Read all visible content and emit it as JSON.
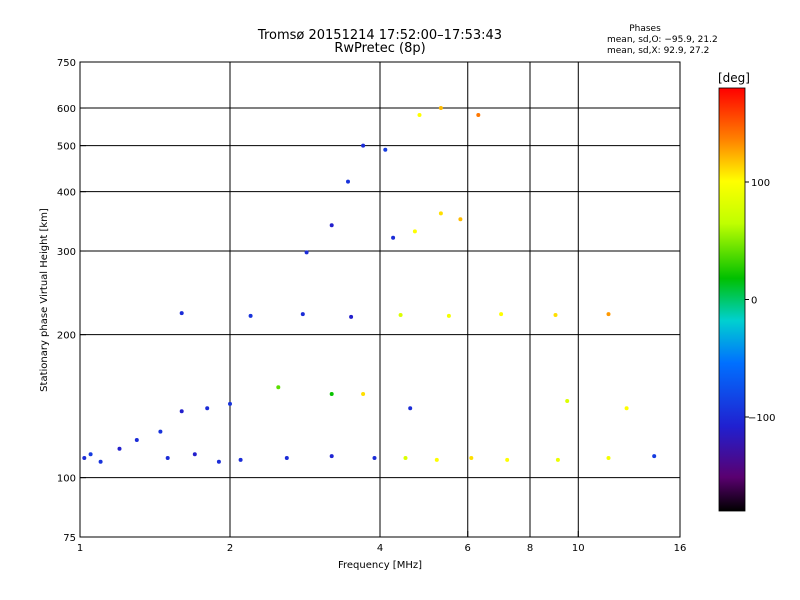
{
  "chart_data": {
    "type": "scatter",
    "title": "Tromsø 20151214 17:52:00–17:53:43",
    "subtitle": "RwPretec (8p)",
    "xlabel": "Frequency [MHz]",
    "ylabel": "Stationary phase Virtual Height [km]",
    "x_scale": "log",
    "y_scale": "log",
    "xlim": [
      1,
      16
    ],
    "ylim": [
      75,
      750
    ],
    "x_ticks": [
      1,
      2,
      4,
      6,
      8,
      10,
      16
    ],
    "y_ticks": [
      75,
      100,
      200,
      300,
      400,
      500,
      600,
      750
    ],
    "grid": true,
    "stats": {
      "heading": "Phases",
      "line_o": "mean, sd,O: −95.9, 21.2",
      "line_x": "mean, sd,X:  92.9, 27.2"
    },
    "colorbar": {
      "label": "[deg]",
      "ticks": [
        100,
        0,
        -100
      ],
      "range": [
        -180,
        180
      ],
      "colormap": "rainbow"
    },
    "series": [
      {
        "values": [
          [
            1.02,
            110,
            -100
          ],
          [
            1.05,
            112,
            -90
          ],
          [
            1.1,
            108,
            -95
          ],
          [
            1.2,
            115,
            -110
          ],
          [
            1.3,
            120,
            -100
          ],
          [
            1.45,
            125,
            -95
          ],
          [
            1.5,
            110,
            -100
          ],
          [
            1.7,
            112,
            -110
          ],
          [
            1.9,
            108,
            -100
          ],
          [
            2.1,
            109,
            -100
          ],
          [
            2.6,
            110,
            -100
          ],
          [
            3.2,
            111,
            -105
          ],
          [
            3.9,
            110,
            -100
          ],
          [
            4.5,
            110,
            80
          ],
          [
            5.2,
            109,
            100
          ],
          [
            6.1,
            110,
            110
          ],
          [
            7.2,
            109,
            100
          ],
          [
            9.1,
            109,
            90
          ],
          [
            11.5,
            110,
            95
          ],
          [
            14.2,
            111,
            -90
          ],
          [
            1.6,
            138,
            -110
          ],
          [
            1.8,
            140,
            -100
          ],
          [
            2.0,
            143,
            -95
          ],
          [
            2.5,
            155,
            40
          ],
          [
            3.2,
            150,
            20
          ],
          [
            3.7,
            150,
            110
          ],
          [
            4.6,
            140,
            -100
          ],
          [
            9.5,
            145,
            80
          ],
          [
            12.5,
            140,
            100
          ],
          [
            1.6,
            222,
            -100
          ],
          [
            2.2,
            219,
            -95
          ],
          [
            2.8,
            221,
            -100
          ],
          [
            3.5,
            218,
            -110
          ],
          [
            4.4,
            220,
            80
          ],
          [
            5.5,
            219,
            95
          ],
          [
            7.0,
            221,
            100
          ],
          [
            9.0,
            220,
            110
          ],
          [
            11.5,
            221,
            130
          ],
          [
            2.85,
            298,
            -100
          ],
          [
            3.2,
            340,
            -110
          ],
          [
            3.45,
            420,
            -95
          ],
          [
            3.7,
            500,
            -100
          ],
          [
            4.1,
            490,
            -90
          ],
          [
            4.25,
            320,
            -100
          ],
          [
            4.7,
            330,
            100
          ],
          [
            5.3,
            360,
            110
          ],
          [
            5.8,
            350,
            120
          ],
          [
            4.8,
            580,
            100
          ],
          [
            5.3,
            600,
            120
          ],
          [
            6.3,
            580,
            140
          ]
        ]
      }
    ]
  }
}
